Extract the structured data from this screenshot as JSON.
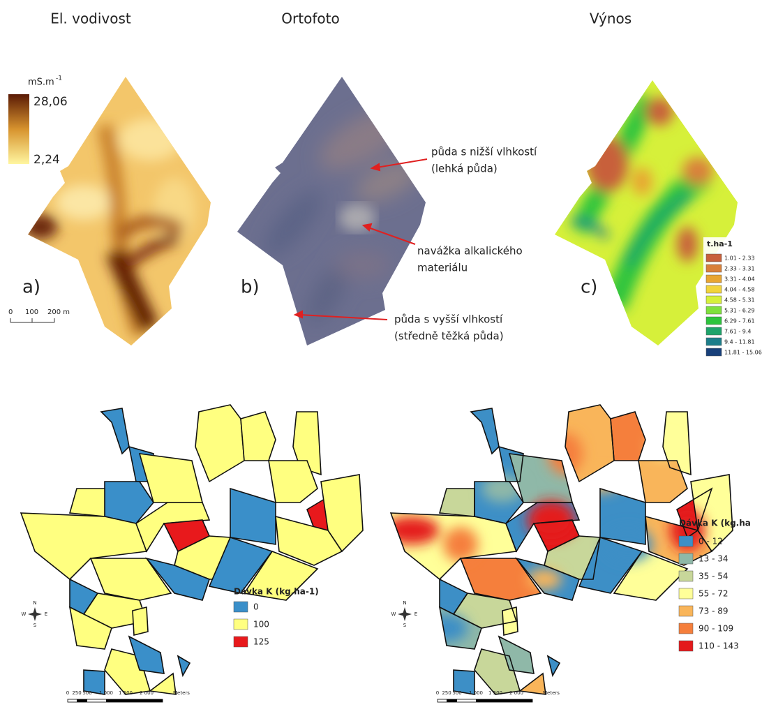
{
  "titles": [
    "El. vodivost",
    "Ortofoto",
    "Výnos"
  ],
  "panel_a": {
    "label": "a)",
    "unit": "mS.m",
    "unit_exponent": "-1",
    "max": "28,06",
    "min": "2,24",
    "scale": [
      "0",
      "100",
      "200 m"
    ]
  },
  "panel_b": {
    "label": "b)",
    "annotations": [
      [
        "půda s nižší vlhkostí",
        "(lehká půda)"
      ],
      [
        "navážka alkalického",
        "materiálu"
      ],
      [
        "půda s vyšší vlhkostí",
        "(středně těžká půda)"
      ]
    ]
  },
  "panel_c": {
    "label": "c)",
    "legend_title": "t.ha-1",
    "classes": [
      {
        "label": "1.01 - 2.33",
        "color": "#c8603a"
      },
      {
        "label": "2.33 - 3.31",
        "color": "#d9803a"
      },
      {
        "label": "3.31 - 4.04",
        "color": "#e8a531"
      },
      {
        "label": "4.04 - 4.58",
        "color": "#f2d43b"
      },
      {
        "label": "4.58 - 5.31",
        "color": "#d6f03a"
      },
      {
        "label": "5.31 - 6.29",
        "color": "#7fe03c"
      },
      {
        "label": "6.29 - 7.61",
        "color": "#2dc43c"
      },
      {
        "label": "7.61 - 9.4",
        "color": "#1ea36a"
      },
      {
        "label": "9.4 - 11.81",
        "color": "#1d7e8a"
      },
      {
        "label": "11.81 - 15.06",
        "color": "#18407a"
      }
    ]
  },
  "map_left": {
    "legend_title": "Dávka K (kg.ha-1)",
    "classes": [
      {
        "label": "0",
        "color": "#3a8fc9"
      },
      {
        "label": "100",
        "color": "#ffff80"
      },
      {
        "label": "125",
        "color": "#e8191c"
      }
    ],
    "compass": [
      "N",
      "S",
      "W",
      "E"
    ],
    "scale": [
      "0",
      "250",
      "500",
      "1 000",
      "1 500",
      "2 000",
      "Meters"
    ]
  },
  "map_right": {
    "legend_title": "Dávka K (kg.ha",
    "classes": [
      {
        "label": "0 - 12",
        "color": "#3d8fc6"
      },
      {
        "label": "13 - 34",
        "color": "#8fb8a8"
      },
      {
        "label": "35 - 54",
        "color": "#c8d79a"
      },
      {
        "label": "55 - 72",
        "color": "#ffff99"
      },
      {
        "label": "73 - 89",
        "color": "#f9b55a"
      },
      {
        "label": "90 - 109",
        "color": "#f57f3c"
      },
      {
        "label": "110 - 143",
        "color": "#e41a1c"
      }
    ],
    "compass": [
      "N",
      "S",
      "W",
      "E"
    ],
    "scale": [
      "0",
      "250",
      "500",
      "1 000",
      "1 500",
      "2 000",
      "Meters"
    ]
  }
}
